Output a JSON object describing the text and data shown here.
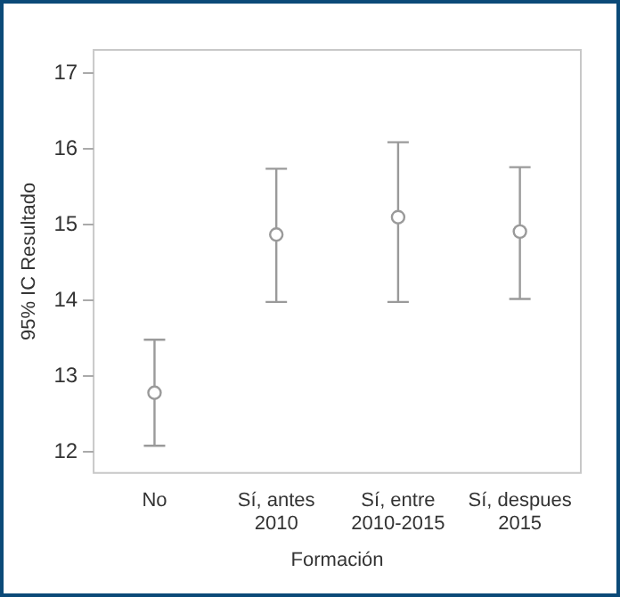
{
  "chart_data": {
    "type": "scatter",
    "xlabel": "Formación",
    "ylabel": "95% IC Resultado",
    "categories": [
      "No",
      "Sí, antes 2010",
      "Sí, entre 2010-2015",
      "Sí, despues 2015"
    ],
    "values": [
      12.78,
      14.87,
      15.1,
      14.91
    ],
    "errors": [
      [
        12.08,
        13.48
      ],
      [
        13.98,
        15.74
      ],
      [
        13.98,
        16.09
      ],
      [
        14.02,
        15.76
      ]
    ],
    "color": "#9a9a9a",
    "marker": "circle",
    "grid": false,
    "legend": false,
    "ylim": [
      11.72,
      17.31
    ],
    "yticks": [
      12,
      13,
      14,
      15,
      16,
      17
    ]
  }
}
